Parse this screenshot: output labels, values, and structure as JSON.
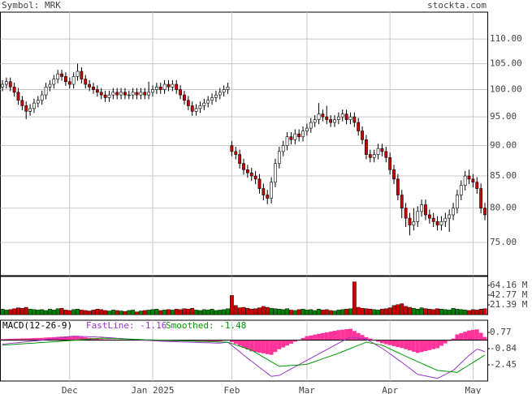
{
  "chart_data": [
    {
      "type": "candlestick",
      "title": "Symbol: MRK",
      "source": "stockta.com",
      "categories": [
        null,
        null,
        null,
        null,
        null,
        null,
        null,
        null,
        null,
        null,
        null,
        null,
        null,
        null,
        null,
        null,
        null,
        "Dec",
        null,
        null,
        null,
        null,
        null,
        null,
        null,
        null,
        null,
        null,
        null,
        null,
        null,
        null,
        null,
        null,
        null,
        null,
        null,
        null,
        "Jan 2025",
        null,
        null,
        null,
        null,
        null,
        null,
        null,
        null,
        null,
        null,
        null,
        null,
        null,
        null,
        null,
        null,
        null,
        null,
        null,
        "Feb",
        null,
        null,
        null,
        null,
        null,
        null,
        null,
        null,
        null,
        null,
        null,
        null,
        null,
        null,
        null,
        null,
        null,
        null,
        "Mar",
        null,
        null,
        null,
        null,
        null,
        null,
        null,
        null,
        null,
        null,
        null,
        null,
        null,
        null,
        null,
        null,
        null,
        null,
        null,
        null,
        "Apr",
        null,
        null,
        null,
        null,
        null,
        null,
        null,
        null,
        null,
        null,
        null,
        null,
        null,
        null,
        null,
        null,
        null,
        null,
        null,
        null,
        "May",
        null,
        null,
        null
      ],
      "open": [
        100.5,
        101,
        101.5,
        100.5,
        99.5,
        98,
        97,
        96,
        96.5,
        97.5,
        98,
        99,
        100.5,
        101,
        102,
        103,
        102.5,
        101.5,
        101,
        102.5,
        103.5,
        102,
        101,
        100.5,
        100,
        99.5,
        99,
        98.5,
        99,
        99.5,
        99,
        99.5,
        99,
        99,
        99.5,
        99,
        99.5,
        99,
        99.5,
        100,
        100.5,
        100,
        101,
        100.5,
        101,
        100,
        99,
        98,
        97,
        96,
        96.5,
        97,
        97.5,
        98,
        98.5,
        99,
        99.5,
        100,
        90,
        89,
        88.5,
        87,
        86,
        85.5,
        85,
        84.5,
        83,
        82,
        81.5,
        84,
        87,
        89,
        90,
        91.5,
        91,
        92,
        91.5,
        92.5,
        93,
        94,
        94.5,
        95.5,
        95,
        94.5,
        94,
        94.5,
        95,
        95.5,
        94.5,
        95,
        94,
        92.5,
        91,
        88.5,
        88,
        88.5,
        89.5,
        89,
        88,
        86,
        84.5,
        82,
        80,
        78.5,
        77.5,
        78,
        79.5,
        80.5,
        79,
        78.5,
        78,
        77.5,
        78,
        78.5,
        79,
        80,
        82,
        83.5,
        85,
        84.5,
        84,
        83,
        80
      ],
      "high": [
        101.8,
        102.3,
        102.3,
        101.3,
        100.3,
        98.8,
        97.8,
        97.3,
        98.3,
        98.8,
        99.8,
        101.3,
        101.8,
        102.8,
        103.8,
        103.8,
        103.3,
        102.3,
        103.3,
        105,
        104.3,
        102.8,
        101.8,
        101.3,
        100.8,
        100.3,
        99.8,
        99.8,
        100.3,
        100.3,
        100.3,
        100.3,
        99.8,
        100.3,
        100.3,
        100.3,
        100.3,
        101.5,
        100.8,
        101.3,
        101.3,
        101.8,
        101.8,
        101.8,
        101.8,
        100.8,
        99.8,
        98.8,
        97.8,
        97.3,
        97.8,
        98.3,
        98.8,
        99.3,
        99.8,
        100.3,
        100.8,
        101.3,
        90.8,
        89.8,
        89.3,
        87.8,
        86.8,
        86.3,
        85.8,
        85.3,
        83.8,
        82.8,
        84.8,
        87.8,
        89.8,
        90.8,
        92.3,
        92.3,
        92.8,
        92.8,
        93.3,
        93.8,
        94.8,
        95.3,
        97.5,
        96.3,
        97,
        95.3,
        95.3,
        95.8,
        96.3,
        96.3,
        95.8,
        95.8,
        94.8,
        93.3,
        91.8,
        89.3,
        89.3,
        90.3,
        90.3,
        89.8,
        88.8,
        86.8,
        85.3,
        82.8,
        80.8,
        79.3,
        80,
        80.3,
        81.3,
        81.3,
        79.8,
        79.3,
        78.8,
        78.8,
        79.3,
        79.8,
        80.8,
        82.8,
        84.3,
        85.8,
        86,
        85.3,
        84.8,
        83.8,
        80.8
      ],
      "low": [
        99.7,
        100.2,
        99.7,
        98.7,
        97.2,
        96.2,
        94.6,
        95.2,
        95.7,
        96.7,
        97.2,
        98.2,
        99.7,
        100.2,
        101.2,
        101.7,
        100.7,
        100.2,
        100.2,
        101.7,
        101.2,
        100.2,
        99.7,
        99.2,
        98.7,
        98.2,
        97.7,
        97.7,
        98.2,
        98.2,
        98.2,
        98.2,
        98.2,
        98.2,
        98.2,
        98.2,
        98.2,
        98.2,
        98.7,
        99.2,
        99.2,
        99.2,
        99.7,
        99.7,
        99.2,
        98.2,
        97.2,
        96.2,
        95.2,
        95.2,
        95.7,
        96.2,
        96.7,
        97.2,
        97.7,
        98.2,
        98.7,
        99.2,
        88.2,
        87.7,
        86.2,
        85.2,
        84.7,
        84.2,
        83.7,
        82.2,
        81.2,
        80.6,
        80.7,
        83.2,
        86.2,
        88.2,
        89.2,
        90.2,
        90.2,
        90.7,
        90.7,
        91.7,
        92.2,
        93.2,
        93.7,
        94.2,
        93.7,
        93.2,
        93.2,
        93.7,
        94.2,
        93.7,
        93.7,
        93.2,
        91.7,
        90.2,
        87.7,
        87.2,
        87.2,
        87.7,
        88.2,
        87.2,
        85.2,
        83.7,
        81.2,
        78.5,
        77.2,
        76,
        76.7,
        77.2,
        78.7,
        78.2,
        77.7,
        77.2,
        76.7,
        76.7,
        77.2,
        76.5,
        78.2,
        79.2,
        81.2,
        82.7,
        83.7,
        83.2,
        82.2,
        79.2,
        78.2
      ],
      "close": [
        101,
        101.5,
        100.5,
        99.5,
        98,
        97,
        96,
        96.5,
        97.5,
        98,
        99,
        100.5,
        101,
        102,
        103,
        102.5,
        101.5,
        101,
        102.5,
        103.5,
        102,
        101,
        100.5,
        100,
        99.5,
        99,
        98.5,
        99,
        99.5,
        99,
        99.5,
        99,
        99,
        99.5,
        99,
        99.5,
        99,
        99.5,
        100,
        100.5,
        100,
        101,
        100.5,
        101,
        100,
        99,
        98,
        97,
        96,
        96.5,
        97,
        97.5,
        98,
        98.5,
        99,
        99.5,
        100,
        100.5,
        89,
        88.5,
        87,
        86,
        85.5,
        85,
        84.5,
        83,
        82,
        81.5,
        84,
        87,
        89,
        90,
        91.5,
        91,
        92,
        91.5,
        92.5,
        93,
        94,
        94.5,
        95.5,
        95,
        94.5,
        94,
        94.5,
        95,
        95.5,
        94.5,
        95,
        94,
        92.5,
        91,
        88.5,
        88,
        88.5,
        89.5,
        89,
        88,
        86,
        84.5,
        82,
        80,
        78.5,
        77.5,
        78,
        79.5,
        80.5,
        79,
        78.5,
        78,
        77.5,
        78,
        78.5,
        79,
        80,
        82,
        83.5,
        85,
        84.5,
        84,
        83,
        80,
        79
      ],
      "up_color": "#ffffff",
      "down_color": "#cc0000",
      "log_scale": true,
      "grid": true,
      "ylim": [
        70.45,
        115.7
      ],
      "yticks": [
        {
          "value": 75,
          "label": "75.00"
        },
        {
          "value": 80,
          "label": "80.00"
        },
        {
          "value": 85,
          "label": "85.00"
        },
        {
          "value": 90,
          "label": "90.00"
        },
        {
          "value": 95,
          "label": "95.00"
        },
        {
          "value": 100,
          "label": "100.00"
        },
        {
          "value": 105,
          "label": "105.00"
        },
        {
          "value": 110,
          "label": "110.00"
        }
      ]
    },
    {
      "type": "volume",
      "values": [
        12,
        10,
        11,
        13,
        15,
        14,
        16,
        12,
        11,
        10,
        11,
        9,
        12,
        10,
        13,
        14,
        10,
        9,
        11,
        12,
        10,
        9,
        8,
        10,
        12,
        11,
        9,
        8,
        10,
        9,
        8,
        7,
        9,
        10,
        6,
        8,
        9,
        10,
        11,
        12,
        9,
        10,
        11,
        10,
        12,
        11,
        13,
        12,
        14,
        10,
        9,
        11,
        10,
        12,
        9,
        10,
        11,
        13,
        42,
        20,
        15,
        16,
        14,
        12,
        13,
        15,
        18,
        16,
        14,
        13,
        12,
        11,
        13,
        10,
        9,
        11,
        12,
        10,
        11,
        9,
        12,
        10,
        11,
        9,
        8,
        10,
        11,
        12,
        13,
        72,
        16,
        14,
        13,
        12,
        11,
        10,
        12,
        13,
        15,
        20,
        22,
        24,
        18,
        16,
        14,
        12,
        15,
        13,
        12,
        11,
        13,
        12,
        11,
        10,
        14,
        12,
        11,
        10,
        9,
        11,
        10,
        12,
        13
      ],
      "up_color": "#008000",
      "down_color": "#cc0000",
      "grid": true,
      "ylim": [
        0,
        83.77
      ],
      "yticks": [
        {
          "value": 21.39,
          "label": "21.39 M"
        },
        {
          "value": 42.77,
          "label": "42.77 M"
        },
        {
          "value": 64.16,
          "label": "64.16 M"
        }
      ]
    },
    {
      "type": "macd",
      "title": "MACD(12-26-9)",
      "series": [
        {
          "name": "FastLine: -1.16",
          "color": "#9933cc",
          "values": [
            -0.4,
            -0.36,
            -0.32,
            -0.28,
            -0.24,
            -0.2,
            -0.16,
            -0.12,
            -0.08,
            -0.04,
            0,
            0.05,
            0.1,
            0.15,
            0.2,
            0.25,
            0.3,
            0.35,
            0.4,
            0.39,
            0.37,
            0.36,
            0.34,
            0.33,
            0.31,
            0.3,
            0.27,
            0.25,
            0.22,
            0.19,
            0.17,
            0.14,
            0.11,
            0.09,
            0.06,
            0.03,
            0.01,
            -0.02,
            -0.05,
            -0.07,
            -0.1,
            -0.11,
            -0.13,
            -0.14,
            -0.15,
            -0.17,
            -0.18,
            -0.19,
            -0.21,
            -0.22,
            -0.23,
            -0.25,
            -0.26,
            -0.27,
            -0.29,
            -0.3,
            -0.25,
            -0.2,
            -0.52,
            -0.84,
            -1.16,
            -1.48,
            -1.8,
            -2.1,
            -2.4,
            -2.7,
            -3.0,
            -3.3,
            -3.6,
            -3.55,
            -3.5,
            -3.29,
            -3.07,
            -2.86,
            -2.64,
            -2.43,
            -2.21,
            -2.0,
            -1.79,
            -1.58,
            -1.36,
            -1.15,
            -0.94,
            -0.73,
            -0.51,
            -0.3,
            -0.1,
            0.1,
            0.3,
            0.25,
            0.2,
            0.15,
            0.1,
            -0.12,
            -0.35,
            -0.58,
            -0.8,
            -1.08,
            -1.36,
            -1.64,
            -1.92,
            -2.2,
            -2.5,
            -2.8,
            -3.1,
            -3.4,
            -3.48,
            -3.56,
            -3.64,
            -3.72,
            -3.8,
            -3.6,
            -3.4,
            -3.2,
            -3.0,
            -2.63,
            -2.25,
            -1.88,
            -1.5,
            -1.2,
            -0.9,
            -1.0,
            -1.16
          ]
        },
        {
          "name": "Smoothed: -1.48",
          "color": "#009900",
          "values": [
            -0.5,
            -0.47,
            -0.45,
            -0.42,
            -0.39,
            -0.37,
            -0.34,
            -0.31,
            -0.29,
            -0.26,
            -0.23,
            -0.21,
            -0.18,
            -0.15,
            -0.13,
            -0.1,
            -0.07,
            -0.04,
            -0.01,
            0.02,
            0.05,
            0.08,
            0.11,
            0.14,
            0.17,
            0.2,
            0.19,
            0.17,
            0.16,
            0.15,
            0.13,
            0.12,
            0.11,
            0.09,
            0.08,
            0.07,
            0.05,
            0.04,
            0.03,
            0.01,
            0,
            -0.01,
            -0.02,
            -0.04,
            -0.05,
            -0.06,
            -0.07,
            -0.08,
            -0.09,
            -0.11,
            -0.12,
            -0.13,
            -0.14,
            -0.15,
            -0.16,
            -0.18,
            -0.19,
            -0.2,
            -0.33,
            -0.47,
            -0.6,
            -0.73,
            -0.87,
            -1.0,
            -1.23,
            -1.46,
            -1.69,
            -1.91,
            -2.14,
            -2.37,
            -2.6,
            -2.57,
            -2.54,
            -2.51,
            -2.49,
            -2.46,
            -2.43,
            -2.4,
            -2.26,
            -2.13,
            -1.99,
            -1.85,
            -1.71,
            -1.58,
            -1.44,
            -1.3,
            -1.14,
            -0.99,
            -0.83,
            -0.67,
            -0.51,
            -0.36,
            -0.2,
            -0.28,
            -0.35,
            -0.43,
            -0.5,
            -0.68,
            -0.87,
            -1.05,
            -1.23,
            -1.42,
            -1.6,
            -1.78,
            -1.95,
            -2.13,
            -2.3,
            -2.48,
            -2.65,
            -2.83,
            -3.0,
            -3.04,
            -3.08,
            -3.12,
            -3.16,
            -3.2,
            -2.95,
            -2.71,
            -2.46,
            -2.22,
            -1.97,
            -1.73,
            -1.48
          ]
        }
      ],
      "histogram": {
        "color": "#ff3399",
        "values": [
          0.1,
          0.11,
          0.13,
          0.14,
          0.15,
          0.17,
          0.18,
          0.19,
          0.21,
          0.22,
          0.23,
          0.26,
          0.28,
          0.3,
          0.33,
          0.35,
          0.37,
          0.39,
          0.41,
          0.37,
          0.32,
          0.28,
          0.23,
          0.19,
          0.14,
          0.1,
          0.08,
          0.08,
          0.06,
          0.04,
          0.04,
          0.02,
          0,
          0,
          -0.02,
          -0.04,
          -0.04,
          -0.06,
          -0.08,
          -0.08,
          -0.1,
          -0.1,
          -0.11,
          -0.1,
          -0.1,
          -0.11,
          -0.11,
          -0.11,
          -0.12,
          -0.11,
          -0.11,
          -0.12,
          -0.12,
          -0.12,
          -0.13,
          -0.12,
          -0.06,
          0,
          -0.19,
          -0.37,
          -0.56,
          -0.75,
          -0.93,
          -1.1,
          -1.17,
          -1.24,
          -1.31,
          -1.39,
          -1.46,
          -1.18,
          -0.9,
          -0.72,
          -0.53,
          -0.35,
          -0.15,
          0.03,
          0.22,
          0.4,
          0.47,
          0.55,
          0.63,
          0.7,
          0.77,
          0.85,
          0.93,
          1.0,
          1.04,
          1.09,
          1.13,
          0.92,
          0.71,
          0.51,
          0.3,
          0.16,
          0,
          -0.15,
          -0.3,
          -0.4,
          -0.49,
          -0.59,
          -0.69,
          -0.78,
          -0.9,
          -1.02,
          -1.15,
          -1.27,
          -1.18,
          -1.08,
          -0.99,
          -0.89,
          -0.8,
          -0.56,
          -0.32,
          -0.08,
          0.16,
          0.57,
          0.7,
          0.83,
          0.96,
          1.02,
          1.07,
          0.73,
          0.32
        ]
      },
      "grid": true,
      "ylim": [
        -4.06,
        1.98
      ],
      "yticks": [
        -2.45,
        -0.84,
        0.77
      ]
    }
  ]
}
